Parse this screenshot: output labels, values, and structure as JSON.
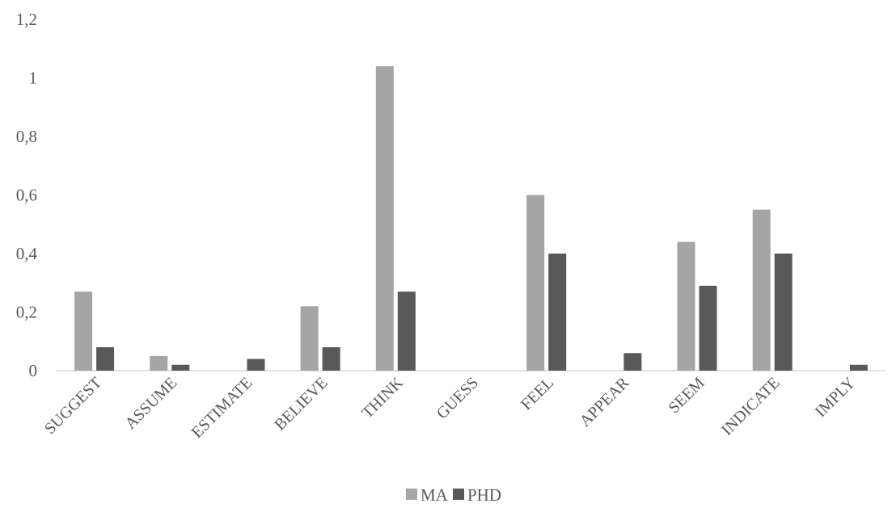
{
  "chart_data": {
    "type": "bar",
    "title": "",
    "xlabel": "",
    "ylabel": "",
    "ylim": [
      0,
      1.2
    ],
    "yticks": [
      "0",
      "0,2",
      "0,4",
      "0,6",
      "0,8",
      "1",
      "1,2"
    ],
    "grid": false,
    "legend": "bottom",
    "categories": [
      "SUGGEST",
      "ASSUME",
      "ESTIMATE",
      "BELIEVE",
      "THINK",
      "GUESS",
      "FEEL",
      "APPEAR",
      "SEEM",
      "INDICATE",
      "IMPLY"
    ],
    "series": [
      {
        "name": "MA",
        "color": "#a5a5a5",
        "values": [
          0.27,
          0.05,
          0,
          0.22,
          1.04,
          0,
          0.6,
          0,
          0.44,
          0.55,
          0
        ]
      },
      {
        "name": "PHD",
        "color": "#595959",
        "values": [
          0.08,
          0.02,
          0.04,
          0.08,
          0.27,
          0,
          0.4,
          0.06,
          0.29,
          0.4,
          0.02
        ]
      }
    ]
  }
}
